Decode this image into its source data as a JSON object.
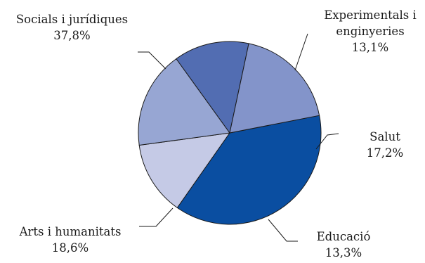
{
  "chart_data": {
    "type": "pie",
    "slices": [
      {
        "key": "socials",
        "label_lines": [
          "Socials i jurídiques"
        ],
        "value_label": "37,8%",
        "value": 37.8,
        "color": "#0a4ea1"
      },
      {
        "key": "experimentals",
        "label_lines": [
          "Experimentals i",
          "enginyeries"
        ],
        "value_label": "13,1%",
        "value": 13.1,
        "color": "#c5cae6"
      },
      {
        "key": "salut",
        "label_lines": [
          "Salut"
        ],
        "value_label": "17,2%",
        "value": 17.2,
        "color": "#97a6d3"
      },
      {
        "key": "educacio",
        "label_lines": [
          "Educació"
        ],
        "value_label": "13,3%",
        "value": 13.3,
        "color": "#526db2"
      },
      {
        "key": "arts",
        "label_lines": [
          "Arts i humanitats"
        ],
        "value_label": "18,6%",
        "value": 18.6,
        "color": "#8394ca"
      }
    ],
    "title": "",
    "legend": "none",
    "slice_outline_color": "#1a1a1a",
    "leader_line_color": "#1a1a1a"
  }
}
